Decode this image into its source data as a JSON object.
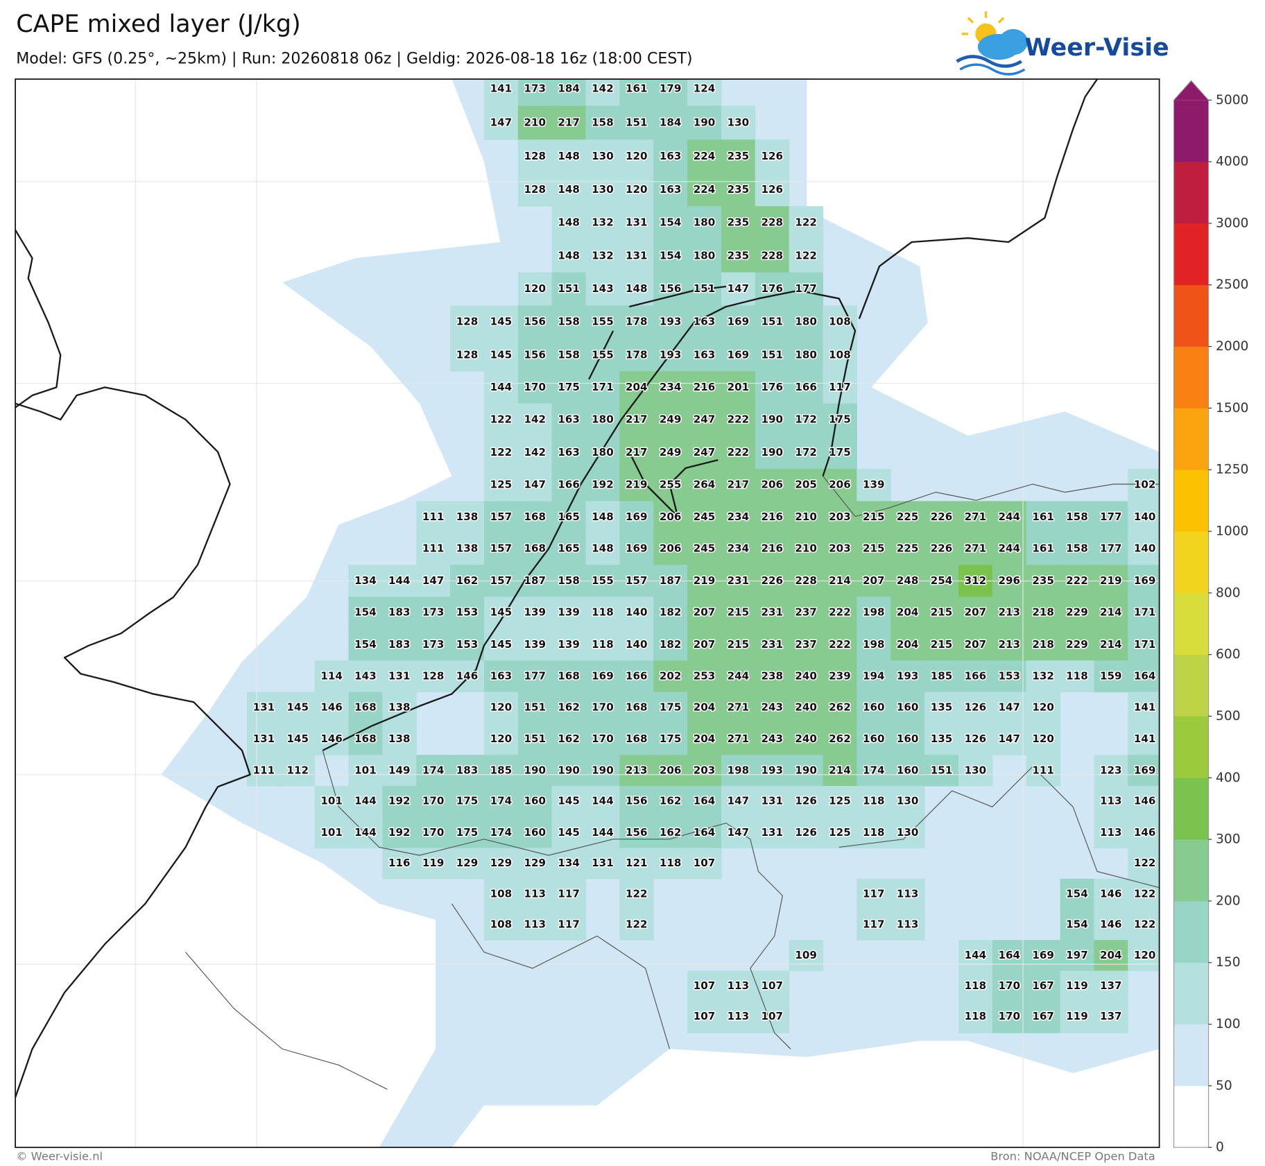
{
  "header": {
    "title": "CAPE mixed layer (J/kg)",
    "subtitle": "Model: GFS (0.25°, ~25km)  |  Run: 20260818 06z  |  Geldig: 2026-08-18 16z (18:00 CEST)",
    "logo": "Weer-Visie"
  },
  "colorbar": {
    "levels": [
      0,
      50,
      100,
      150,
      200,
      300,
      400,
      500,
      600,
      800,
      1000,
      1250,
      1500,
      2000,
      2500,
      3000,
      4000,
      5000
    ],
    "colors": [
      "#ffffff",
      "#d2e7f6",
      "#b5e0e0",
      "#99d5c7",
      "#88cb90",
      "#7cc24e",
      "#9bcb3c",
      "#bed445",
      "#d9dd3a",
      "#f2d41e",
      "#fcc100",
      "#fca410",
      "#f98012",
      "#ef5318",
      "#e02424",
      "#bf1e3e",
      "#8e1a6b"
    ],
    "extend_color": "#8e1a6b"
  },
  "grid": [
    [
      null,
      null,
      null,
      null,
      null,
      null,
      null,
      141,
      173,
      184,
      142,
      161,
      179,
      124,
      null,
      null,
      null,
      null,
      null,
      null,
      null,
      null,
      null,
      null,
      null,
      null,
      null
    ],
    [
      null,
      null,
      null,
      null,
      null,
      null,
      null,
      147,
      210,
      217,
      158,
      151,
      184,
      190,
      130,
      null,
      null,
      null,
      null,
      null,
      null,
      null,
      null,
      null,
      null,
      null,
      null
    ],
    [
      null,
      null,
      null,
      null,
      null,
      null,
      null,
      null,
      128,
      148,
      130,
      120,
      163,
      224,
      235,
      126,
      null,
      null,
      null,
      null,
      null,
      null,
      null,
      null,
      null,
      null,
      null
    ],
    [
      null,
      null,
      null,
      null,
      null,
      null,
      null,
      null,
      128,
      148,
      130,
      120,
      163,
      224,
      235,
      126,
      null,
      null,
      null,
      null,
      null,
      null,
      null,
      null,
      null,
      null,
      null
    ],
    [
      null,
      null,
      null,
      null,
      null,
      null,
      null,
      null,
      null,
      148,
      132,
      131,
      154,
      180,
      235,
      228,
      122,
      null,
      null,
      null,
      null,
      null,
      null,
      null,
      null,
      null,
      null
    ],
    [
      null,
      null,
      null,
      null,
      null,
      null,
      null,
      null,
      null,
      148,
      132,
      131,
      154,
      180,
      235,
      228,
      122,
      null,
      null,
      null,
      null,
      null,
      null,
      null,
      null,
      null,
      null
    ],
    [
      null,
      null,
      null,
      null,
      null,
      null,
      null,
      null,
      120,
      151,
      143,
      148,
      156,
      151,
      147,
      176,
      177,
      null,
      null,
      null,
      null,
      null,
      null,
      null,
      null,
      null,
      null
    ],
    [
      null,
      null,
      null,
      null,
      null,
      null,
      128,
      145,
      156,
      158,
      155,
      178,
      193,
      163,
      169,
      151,
      180,
      108,
      null,
      null,
      null,
      null,
      null,
      null,
      null,
      null,
      null
    ],
    [
      null,
      null,
      null,
      null,
      null,
      null,
      128,
      145,
      156,
      158,
      155,
      178,
      193,
      163,
      169,
      151,
      180,
      108,
      null,
      null,
      null,
      null,
      null,
      null,
      null,
      null,
      null
    ],
    [
      null,
      null,
      null,
      null,
      null,
      null,
      null,
      144,
      170,
      175,
      171,
      204,
      234,
      216,
      201,
      176,
      166,
      117,
      null,
      null,
      null,
      null,
      null,
      null,
      null,
      null,
      null
    ],
    [
      null,
      null,
      null,
      null,
      null,
      null,
      null,
      122,
      142,
      163,
      180,
      217,
      249,
      247,
      222,
      190,
      172,
      175,
      null,
      null,
      null,
      null,
      null,
      null,
      null,
      null,
      null
    ],
    [
      null,
      null,
      null,
      null,
      null,
      null,
      null,
      122,
      142,
      163,
      180,
      217,
      249,
      247,
      222,
      190,
      172,
      175,
      null,
      null,
      null,
      null,
      null,
      null,
      null,
      null,
      null
    ],
    [
      null,
      null,
      null,
      null,
      null,
      null,
      null,
      125,
      147,
      166,
      192,
      219,
      255,
      264,
      217,
      206,
      205,
      206,
      139,
      null,
      null,
      null,
      null,
      null,
      null,
      null,
      102
    ],
    [
      null,
      null,
      null,
      null,
      null,
      111,
      138,
      157,
      168,
      165,
      148,
      169,
      206,
      245,
      234,
      216,
      210,
      203,
      215,
      225,
      226,
      271,
      244,
      161,
      158,
      177,
      140
    ],
    [
      null,
      null,
      null,
      null,
      null,
      111,
      138,
      157,
      168,
      165,
      148,
      169,
      206,
      245,
      234,
      216,
      210,
      203,
      215,
      225,
      226,
      271,
      244,
      161,
      158,
      177,
      140
    ],
    [
      null,
      null,
      null,
      134,
      144,
      147,
      162,
      157,
      187,
      158,
      155,
      157,
      187,
      219,
      231,
      226,
      228,
      214,
      207,
      248,
      254,
      312,
      296,
      235,
      222,
      219,
      169
    ],
    [
      null,
      null,
      null,
      154,
      183,
      173,
      153,
      145,
      139,
      139,
      118,
      140,
      182,
      207,
      215,
      231,
      237,
      222,
      198,
      204,
      215,
      207,
      213,
      218,
      229,
      214,
      171
    ],
    [
      null,
      null,
      null,
      154,
      183,
      173,
      153,
      145,
      139,
      139,
      118,
      140,
      182,
      207,
      215,
      231,
      237,
      222,
      198,
      204,
      215,
      207,
      213,
      218,
      229,
      214,
      171
    ],
    [
      null,
      null,
      114,
      143,
      131,
      128,
      146,
      163,
      177,
      168,
      169,
      166,
      202,
      253,
      244,
      238,
      240,
      239,
      194,
      193,
      185,
      166,
      153,
      132,
      118,
      159,
      164
    ],
    [
      131,
      145,
      146,
      168,
      138,
      null,
      null,
      120,
      151,
      162,
      170,
      168,
      175,
      204,
      271,
      243,
      240,
      262,
      160,
      160,
      135,
      126,
      147,
      120,
      null,
      null,
      141
    ],
    [
      131,
      145,
      146,
      168,
      138,
      null,
      null,
      120,
      151,
      162,
      170,
      168,
      175,
      204,
      271,
      243,
      240,
      262,
      160,
      160,
      135,
      126,
      147,
      120,
      null,
      null,
      141
    ],
    [
      111,
      112,
      null,
      101,
      149,
      174,
      183,
      185,
      190,
      190,
      190,
      213,
      206,
      203,
      198,
      193,
      190,
      214,
      174,
      160,
      151,
      130,
      null,
      111,
      null,
      123,
      169
    ],
    [
      null,
      null,
      101,
      144,
      192,
      170,
      175,
      174,
      160,
      145,
      144,
      156,
      162,
      164,
      147,
      131,
      126,
      125,
      118,
      130,
      null,
      null,
      null,
      null,
      null,
      113,
      146
    ],
    [
      null,
      null,
      101,
      144,
      192,
      170,
      175,
      174,
      160,
      145,
      144,
      156,
      162,
      164,
      147,
      131,
      126,
      125,
      118,
      130,
      null,
      null,
      null,
      null,
      null,
      113,
      146
    ],
    [
      null,
      null,
      null,
      null,
      116,
      119,
      129,
      129,
      129,
      134,
      131,
      121,
      118,
      107,
      null,
      null,
      null,
      null,
      null,
      null,
      null,
      null,
      null,
      null,
      null,
      null,
      122
    ],
    [
      null,
      null,
      null,
      null,
      null,
      null,
      null,
      108,
      113,
      117,
      null,
      122,
      null,
      null,
      null,
      null,
      null,
      null,
      117,
      113,
      null,
      null,
      null,
      null,
      154,
      146,
      122
    ],
    [
      null,
      null,
      null,
      null,
      null,
      null,
      null,
      108,
      113,
      117,
      null,
      122,
      null,
      null,
      null,
      null,
      null,
      null,
      117,
      113,
      null,
      null,
      null,
      null,
      154,
      146,
      122
    ],
    [
      null,
      null,
      null,
      null,
      null,
      null,
      null,
      null,
      null,
      null,
      null,
      null,
      null,
      null,
      null,
      null,
      109,
      null,
      null,
      null,
      null,
      144,
      164,
      169,
      197,
      204,
      120
    ],
    [
      null,
      null,
      null,
      null,
      null,
      null,
      null,
      null,
      null,
      null,
      null,
      null,
      null,
      107,
      113,
      107,
      null,
      null,
      null,
      null,
      null,
      118,
      170,
      167,
      119,
      137,
      null
    ],
    [
      null,
      null,
      null,
      null,
      null,
      null,
      null,
      null,
      null,
      null,
      null,
      null,
      null,
      107,
      113,
      107,
      null,
      null,
      null,
      null,
      null,
      118,
      170,
      167,
      119,
      137,
      null
    ]
  ],
  "footer": {
    "left": "© Weer-visie.nl",
    "right": "Bron: NOAA/NCEP Open Data"
  }
}
